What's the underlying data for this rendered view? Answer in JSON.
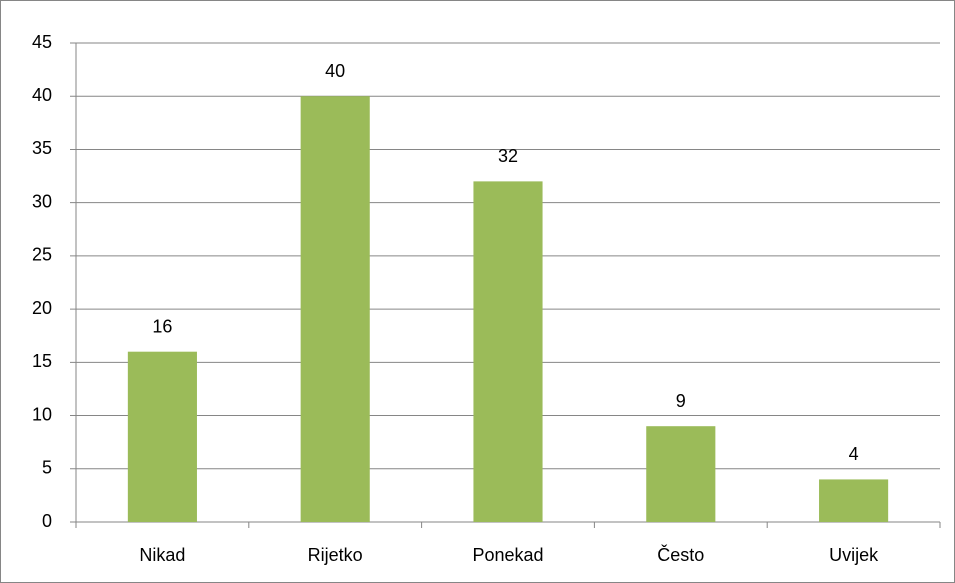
{
  "chart_data": {
    "type": "bar",
    "categories": [
      "Nikad",
      "Rijetko",
      "Ponekad",
      "Često",
      "Uvijek"
    ],
    "values": [
      16,
      40,
      32,
      9,
      4
    ],
    "color": "#9bbb59",
    "ylim": [
      0,
      45
    ],
    "yticks": [
      0,
      5,
      10,
      15,
      20,
      25,
      30,
      35,
      40,
      45
    ],
    "grid": true
  }
}
